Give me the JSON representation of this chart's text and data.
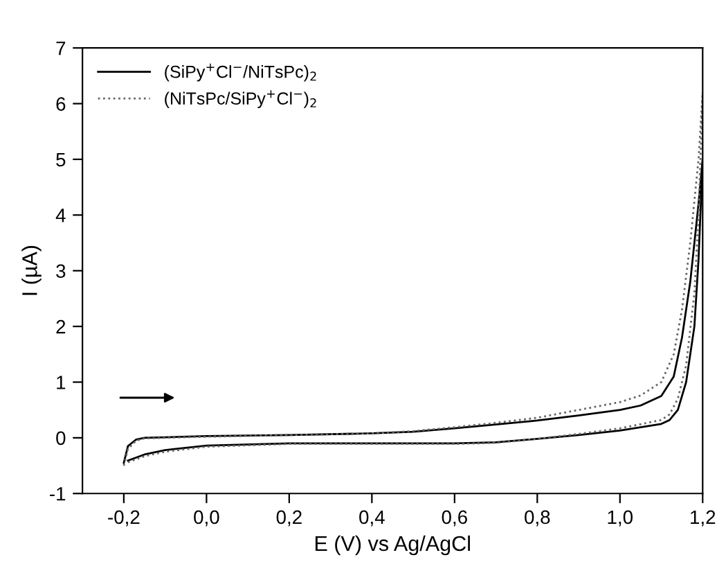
{
  "chart_data": {
    "type": "line",
    "xlabel": "E (V) vs Ag/AgCl",
    "ylabel": "I (µA)",
    "xlim": [
      -0.3,
      1.2
    ],
    "ylim": [
      -1,
      7
    ],
    "xticks": [
      {
        "value": -0.2,
        "label": "-0,2"
      },
      {
        "value": 0.0,
        "label": "0,0"
      },
      {
        "value": 0.2,
        "label": "0,2"
      },
      {
        "value": 0.4,
        "label": "0,4"
      },
      {
        "value": 0.6,
        "label": "0,6"
      },
      {
        "value": 0.8,
        "label": "0,8"
      },
      {
        "value": 1.0,
        "label": "1,0"
      },
      {
        "value": 1.2,
        "label": "1,2"
      }
    ],
    "yticks": [
      -1,
      0,
      1,
      2,
      3,
      4,
      5,
      6,
      7
    ],
    "grid": false,
    "legend": "top left",
    "marker": "none",
    "series": [
      {
        "name": "(SiPy$^{+}$Cl$^{−}$/NiTsPc)$_{2}$",
        "color": "#000000",
        "line_style": "solid",
        "x": [
          -0.2,
          -0.19,
          -0.17,
          -0.15,
          -0.1,
          0.0,
          0.2,
          0.4,
          0.5,
          0.6,
          0.7,
          0.8,
          0.9,
          1.0,
          1.05,
          1.1,
          1.13,
          1.15,
          1.17,
          1.19,
          1.2
        ],
        "values": [
          -0.45,
          -0.15,
          -0.03,
          0.0,
          0.01,
          0.03,
          0.05,
          0.08,
          0.11,
          0.17,
          0.24,
          0.31,
          0.4,
          0.5,
          0.58,
          0.75,
          1.1,
          1.8,
          2.8,
          4.2,
          5.0
        ]
      },
      {
        "color": "#000000",
        "line_style": "solid",
        "x": [
          -0.19,
          -0.15,
          -0.1,
          0.0,
          0.2,
          0.4,
          0.6,
          0.7,
          0.8,
          0.9,
          1.0,
          1.1,
          1.12,
          1.14,
          1.16,
          1.18,
          1.19,
          1.2
        ],
        "values": [
          -0.41,
          -0.3,
          -0.22,
          -0.14,
          -0.1,
          -0.1,
          -0.1,
          -0.08,
          -0.02,
          0.05,
          0.13,
          0.25,
          0.32,
          0.5,
          1.0,
          2.0,
          3.2,
          5.0
        ]
      },
      {
        "name": "(NiTsPc/SiPy$^{+}$Cl$^{−}$)$_{2}$",
        "color": "#666666",
        "line_style": "dotted",
        "x": [
          -0.2,
          -0.19,
          -0.17,
          -0.15,
          -0.1,
          0.0,
          0.2,
          0.4,
          0.5,
          0.6,
          0.7,
          0.8,
          0.9,
          1.0,
          1.05,
          1.1,
          1.13,
          1.15,
          1.17,
          1.19,
          1.2
        ],
        "values": [
          -0.5,
          -0.2,
          -0.05,
          -0.01,
          0.0,
          0.02,
          0.05,
          0.08,
          0.12,
          0.19,
          0.27,
          0.36,
          0.5,
          0.64,
          0.76,
          1.0,
          1.5,
          2.3,
          3.5,
          5.0,
          6.2
        ]
      },
      {
        "color": "#666666",
        "line_style": "dotted",
        "x": [
          -0.19,
          -0.15,
          -0.1,
          0.0,
          0.2,
          0.4,
          0.6,
          0.7,
          0.8,
          0.9,
          1.0,
          1.1,
          1.12,
          1.14,
          1.16,
          1.18,
          1.19,
          1.2
        ],
        "values": [
          -0.44,
          -0.33,
          -0.25,
          -0.16,
          -0.11,
          -0.11,
          -0.11,
          -0.09,
          -0.02,
          0.07,
          0.17,
          0.32,
          0.42,
          0.7,
          1.3,
          2.6,
          4.0,
          6.2
        ]
      }
    ]
  }
}
